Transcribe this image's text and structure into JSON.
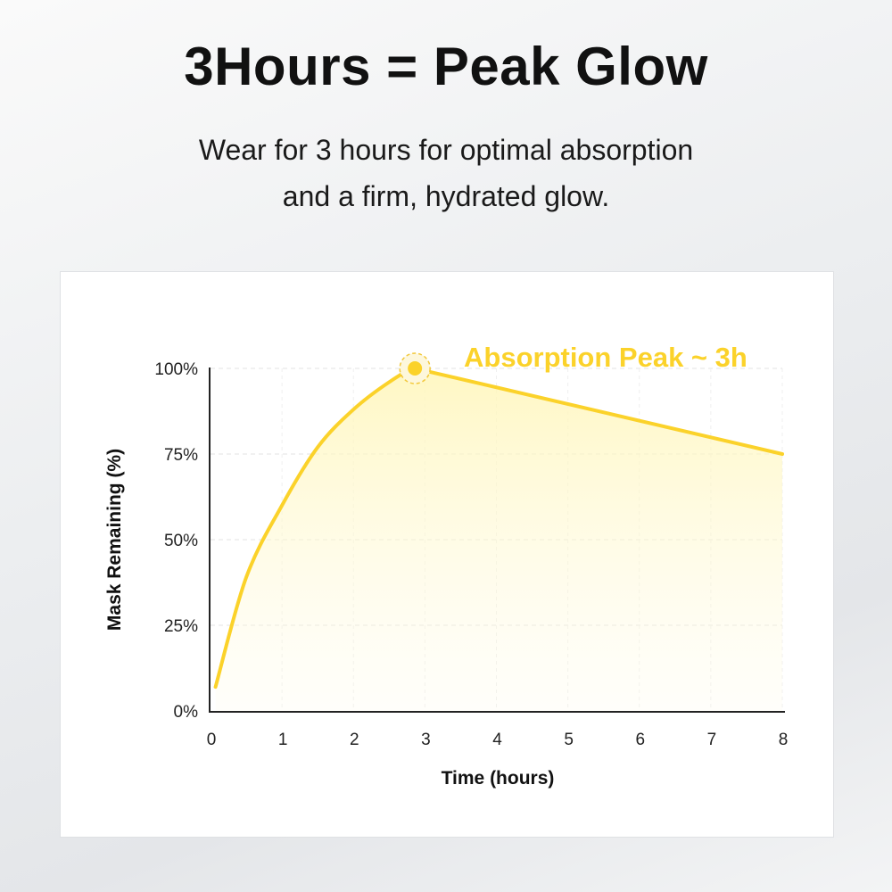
{
  "header": {
    "title": "3Hours = Peak Glow",
    "subtitle_line1": "Wear for 3 hours for optimal absorption",
    "subtitle_line2": "and a firm, hydrated glow."
  },
  "chart_data": {
    "type": "line",
    "xlabel": "Time (hours)",
    "ylabel": "Mask Remaining (%)",
    "xlim": [
      0,
      8
    ],
    "ylim": [
      0,
      100
    ],
    "x_ticks": [
      "0",
      "1",
      "2",
      "3",
      "4",
      "5",
      "6",
      "7",
      "8"
    ],
    "y_ticks": [
      "0%",
      "25%",
      "50%",
      "75%",
      "100%"
    ],
    "grid": true,
    "series": [
      {
        "x": [
          0.07,
          0.5,
          1,
          1.5,
          2,
          2.5,
          2.86,
          8
        ],
        "y": [
          7,
          39,
          60,
          77,
          88,
          96,
          100,
          75
        ]
      }
    ],
    "annotation": {
      "text": "Absorption Peak ~ 3h",
      "x": 2.86,
      "y": 100
    },
    "colors": {
      "line": "#fbd22a",
      "fill": "#fff5b0",
      "axis": "#222222"
    }
  }
}
